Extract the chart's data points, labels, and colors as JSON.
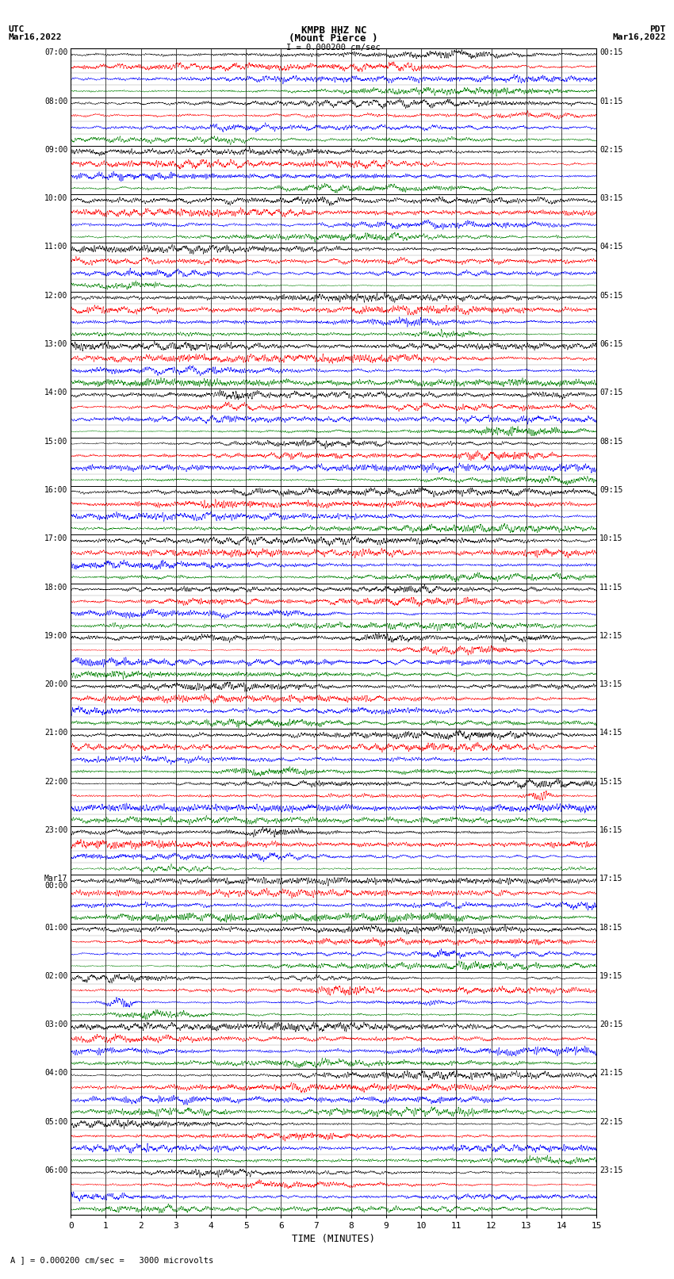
{
  "title_line1": "KMPB HHZ NC",
  "title_line2": "(Mount Pierce )",
  "title_scale": "I = 0.000200 cm/sec",
  "footer": "A ] = 0.000200 cm/sec =   3000 microvolts",
  "xlabel": "TIME (MINUTES)",
  "left_times": [
    "07:00",
    "08:00",
    "09:00",
    "10:00",
    "11:00",
    "12:00",
    "13:00",
    "14:00",
    "15:00",
    "16:00",
    "17:00",
    "18:00",
    "19:00",
    "20:00",
    "21:00",
    "22:00",
    "23:00",
    "Mar17\n00:00",
    "01:00",
    "02:00",
    "03:00",
    "04:00",
    "05:00",
    "06:00"
  ],
  "right_times": [
    "00:15",
    "01:15",
    "02:15",
    "03:15",
    "04:15",
    "05:15",
    "06:15",
    "07:15",
    "08:15",
    "09:15",
    "10:15",
    "11:15",
    "12:15",
    "13:15",
    "14:15",
    "15:15",
    "16:15",
    "17:15",
    "18:15",
    "19:15",
    "20:15",
    "21:15",
    "22:15",
    "23:15"
  ],
  "n_rows": 24,
  "n_traces_per_row": 4,
  "colors": [
    "black",
    "red",
    "blue",
    "green"
  ],
  "bg_color": "white",
  "fig_width": 8.5,
  "fig_height": 16.13,
  "xlim": [
    0,
    15
  ],
  "xticks": [
    0,
    1,
    2,
    3,
    4,
    5,
    6,
    7,
    8,
    9,
    10,
    11,
    12,
    13,
    14,
    15
  ],
  "seed": 42,
  "n_points": 6000,
  "base_freq_low": 8.0,
  "base_freq_high": 25.0,
  "amplitude_fill": 0.42
}
